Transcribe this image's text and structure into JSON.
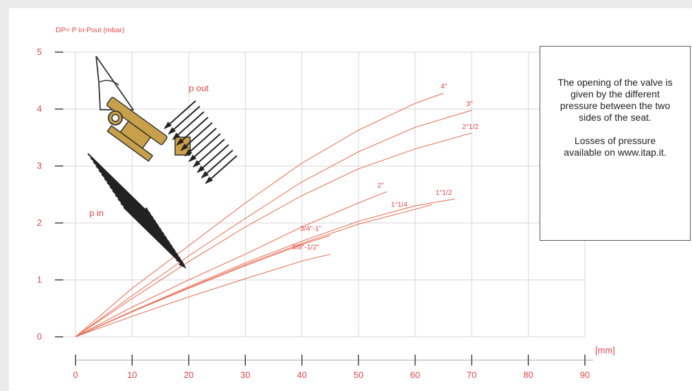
{
  "chart_data": {
    "type": "line",
    "ylabel": "DP= P in-Pout (mbar)",
    "xlabel": "[mm]",
    "xlim": [
      0,
      90
    ],
    "ylim": [
      0,
      5
    ],
    "x_ticks": [
      "0",
      "10",
      "20",
      "30",
      "40",
      "50",
      "60",
      "70",
      "80",
      "90"
    ],
    "y_ticks": [
      "0",
      "1",
      "2",
      "3",
      "4",
      "5"
    ],
    "grid": true,
    "series": [
      {
        "name": "4\"",
        "x": [
          0,
          10,
          20,
          30,
          40,
          50,
          60,
          65
        ],
        "y": [
          0,
          0.85,
          1.6,
          2.35,
          3.05,
          3.63,
          4.1,
          4.28
        ]
      },
      {
        "name": "3\"",
        "x": [
          0,
          10,
          20,
          30,
          40,
          50,
          60,
          70
        ],
        "y": [
          0,
          0.72,
          1.42,
          2.08,
          2.72,
          3.25,
          3.68,
          3.98
        ]
      },
      {
        "name": "2\"1/2",
        "x": [
          0,
          10,
          20,
          30,
          40,
          50,
          60,
          70
        ],
        "y": [
          0,
          0.67,
          1.32,
          1.93,
          2.48,
          2.95,
          3.3,
          3.58
        ]
      },
      {
        "name": "2\"",
        "x": [
          0,
          10,
          20,
          30,
          40,
          50,
          55
        ],
        "y": [
          0,
          0.52,
          1.0,
          1.45,
          1.93,
          2.35,
          2.55
        ]
      },
      {
        "name": "1\"1/2",
        "x": [
          0,
          10,
          20,
          30,
          40,
          50,
          60,
          67
        ],
        "y": [
          0,
          0.45,
          0.88,
          1.3,
          1.68,
          2.03,
          2.3,
          2.42
        ]
      },
      {
        "name": "1\"1/4",
        "x": [
          0,
          10,
          20,
          30,
          40,
          50,
          60,
          63
        ],
        "y": [
          0,
          0.44,
          0.86,
          1.27,
          1.64,
          1.98,
          2.24,
          2.32
        ]
      },
      {
        "name": "3/4\"-1\"",
        "x": [
          0,
          10,
          20,
          30,
          40,
          45
        ],
        "y": [
          0,
          0.44,
          0.85,
          1.25,
          1.62,
          1.78
        ]
      },
      {
        "name": "3/8\"-1/2\"",
        "x": [
          0,
          10,
          20,
          30,
          40,
          45
        ],
        "y": [
          0,
          0.36,
          0.7,
          1.02,
          1.33,
          1.45
        ]
      }
    ]
  },
  "diagram": {
    "p_out_label": "p out",
    "p_in_label": "p in"
  },
  "note": {
    "paragraph1": "The opening of the valve is given by the different pressure between the two sides of the seat.",
    "paragraph2": "Losses of pressure available on www.itap.it."
  },
  "colors": {
    "curve": "#e8735a",
    "text": "#e0474c",
    "grid": "#d6d6d6",
    "valve": "#c9a04a"
  }
}
